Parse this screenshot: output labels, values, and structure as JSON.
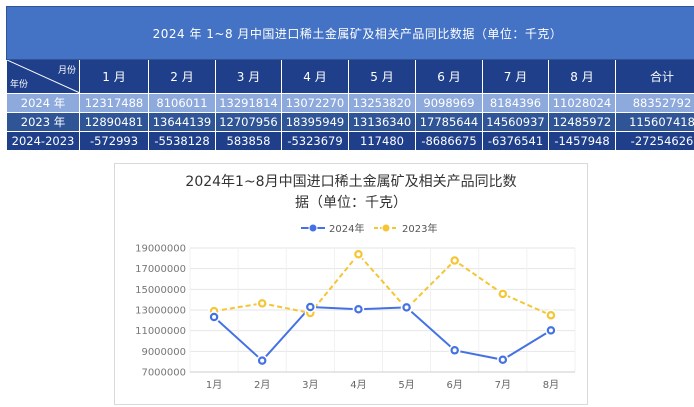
{
  "table": {
    "title": "2024 年 1~8 月中国进口稀土金属矿及相关产品同比数据（单位：千克）",
    "corner_month": "月份",
    "corner_year": "年份",
    "headers": [
      "1 月",
      "2 月",
      "3 月",
      "4 月",
      "5 月",
      "6 月",
      "7 月",
      "8 月",
      "合计"
    ],
    "rows": [
      {
        "label": "2024 年",
        "values": [
          "12317488",
          "8106011",
          "13291814",
          "13072270",
          "13253820",
          "9098969",
          "8184396",
          "11028024",
          "88352792"
        ]
      },
      {
        "label": "2023 年",
        "values": [
          "12890481",
          "13644139",
          "12707956",
          "18395949",
          "13136340",
          "17785644",
          "14560937",
          "12485972",
          "115607418"
        ]
      },
      {
        "label": "2024-2023",
        "values": [
          "-572993",
          "-5538128",
          "583858",
          "-5323679",
          "117480",
          "-8686675",
          "-6376541",
          "-1457948",
          "-27254626"
        ]
      }
    ]
  },
  "chart_data": {
    "type": "line",
    "title_line1": "2024年1~8月中国进口稀土金属矿及相关产品同比数",
    "title_line2": "据（单位：千克）",
    "categories": [
      "1月",
      "2月",
      "3月",
      "4月",
      "5月",
      "6月",
      "7月",
      "8月"
    ],
    "series": [
      {
        "name": "2024年",
        "values": [
          12317488,
          8106011,
          13291814,
          13072270,
          13253820,
          9098969,
          8184396,
          11028024
        ],
        "color": "#4472e4",
        "style": "solid"
      },
      {
        "name": "2023年",
        "values": [
          12890481,
          13644139,
          12707956,
          18395949,
          13136340,
          17785644,
          14560937,
          12485972
        ],
        "color": "#f5c533",
        "style": "dashed"
      }
    ],
    "yticks": [
      "19000000",
      "17000000",
      "15000000",
      "13000000",
      "11000000",
      "9000000",
      "7000000"
    ],
    "ylim": [
      7000000,
      19000000
    ],
    "legend_position": "top-center",
    "grid": true
  }
}
